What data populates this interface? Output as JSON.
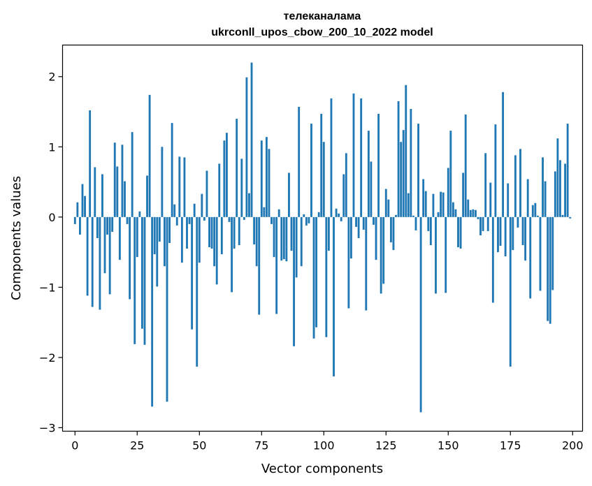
{
  "chart_data": {
    "type": "bar",
    "title": "телеканалама",
    "subtitle": "ukrconll_upos_cbow_200_10_2022 model",
    "xlabel": "Vector components",
    "ylabel": "Components values",
    "xlim": [
      -5,
      204
    ],
    "ylim": [
      -3.05,
      2.45
    ],
    "xticks": [
      0,
      25,
      50,
      75,
      100,
      125,
      150,
      175,
      200
    ],
    "yticks": [
      -3,
      -2,
      -1,
      0,
      1,
      2
    ],
    "ytick_labels": [
      "−3",
      "−2",
      "−1",
      "0",
      "1",
      "2"
    ],
    "bar_color": "#1f77b4",
    "grid": false,
    "x": [
      0,
      1,
      2,
      3,
      4,
      5,
      6,
      7,
      8,
      9,
      10,
      11,
      12,
      13,
      14,
      15,
      16,
      17,
      18,
      19,
      20,
      21,
      22,
      23,
      24,
      25,
      26,
      27,
      28,
      29,
      30,
      31,
      32,
      33,
      34,
      35,
      36,
      37,
      38,
      39,
      40,
      41,
      42,
      43,
      44,
      45,
      46,
      47,
      48,
      49,
      50,
      51,
      52,
      53,
      54,
      55,
      56,
      57,
      58,
      59,
      60,
      61,
      62,
      63,
      64,
      65,
      66,
      67,
      68,
      69,
      70,
      71,
      72,
      73,
      74,
      75,
      76,
      77,
      78,
      79,
      80,
      81,
      82,
      83,
      84,
      85,
      86,
      87,
      88,
      89,
      90,
      91,
      92,
      93,
      94,
      95,
      96,
      97,
      98,
      99,
      100,
      101,
      102,
      103,
      104,
      105,
      106,
      107,
      108,
      109,
      110,
      111,
      112,
      113,
      114,
      115,
      116,
      117,
      118,
      119,
      120,
      121,
      122,
      123,
      124,
      125,
      126,
      127,
      128,
      129,
      130,
      131,
      132,
      133,
      134,
      135,
      136,
      137,
      138,
      139,
      140,
      141,
      142,
      143,
      144,
      145,
      146,
      147,
      148,
      149,
      150,
      151,
      152,
      153,
      154,
      155,
      156,
      157,
      158,
      159,
      160,
      161,
      162,
      163,
      164,
      165,
      166,
      167,
      168,
      169,
      170,
      171,
      172,
      173,
      174,
      175,
      176,
      177,
      178,
      179,
      180,
      181,
      182,
      183,
      184,
      185,
      186,
      187,
      188,
      189,
      190,
      191,
      192,
      193,
      194,
      195,
      196,
      197,
      198,
      199
    ],
    "values": [
      -0.1,
      0.21,
      -0.25,
      0.47,
      0.3,
      -1.12,
      1.52,
      -1.28,
      0.71,
      -0.3,
      -1.32,
      0.61,
      -0.8,
      -0.25,
      -1.1,
      -0.21,
      1.06,
      0.72,
      -0.61,
      1.03,
      0.51,
      -0.1,
      -1.17,
      1.21,
      -1.81,
      -0.57,
      0.08,
      -1.59,
      -1.82,
      0.59,
      1.74,
      -2.7,
      -0.53,
      -0.99,
      -0.35,
      1.0,
      -0.7,
      -2.63,
      -0.37,
      1.34,
      0.18,
      -0.12,
      0.86,
      -0.65,
      0.85,
      -0.45,
      -0.1,
      -1.6,
      0.19,
      -2.13,
      -0.65,
      0.33,
      -0.05,
      0.66,
      -0.43,
      -0.45,
      -0.7,
      -0.96,
      0.76,
      -0.53,
      1.09,
      1.2,
      -0.07,
      -1.07,
      -0.45,
      1.4,
      -0.4,
      0.83,
      -0.04,
      1.99,
      0.34,
      2.2,
      -0.39,
      -0.7,
      -1.39,
      1.09,
      0.14,
      1.14,
      0.97,
      -0.1,
      -0.57,
      -1.38,
      0.11,
      -0.62,
      -0.6,
      -0.63,
      0.63,
      -0.48,
      -1.84,
      -0.86,
      1.57,
      -0.7,
      0.04,
      -0.12,
      -0.09,
      1.33,
      -1.73,
      -1.57,
      0.07,
      1.47,
      1.07,
      -1.71,
      -0.48,
      1.69,
      -2.27,
      0.12,
      0.05,
      -0.06,
      0.61,
      0.91,
      -1.3,
      -0.59,
      1.76,
      -0.14,
      -0.3,
      1.69,
      -0.18,
      -1.33,
      1.23,
      0.79,
      -0.11,
      -0.61,
      1.47,
      -1.09,
      -0.95,
      0.4,
      0.25,
      -0.36,
      -0.47,
      0.03,
      1.65,
      1.07,
      1.24,
      1.88,
      0.34,
      1.54,
      0.02,
      -0.19,
      1.33,
      -2.78,
      0.54,
      0.37,
      -0.2,
      -0.4,
      0.33,
      -1.09,
      0.07,
      0.36,
      0.35,
      -1.08,
      0.7,
      1.23,
      0.21,
      0.11,
      -0.43,
      -0.45,
      0.63,
      1.46,
      0.25,
      0.1,
      0.11,
      0.1,
      -0.03,
      -0.26,
      -0.2,
      0.91,
      -0.2,
      0.49,
      -1.22,
      1.32,
      -0.5,
      -0.41,
      1.78,
      -0.56,
      0.48,
      -2.13,
      -0.47,
      0.88,
      -0.15,
      0.97,
      -0.4,
      -0.62,
      0.54,
      -1.16,
      0.17,
      0.2,
      0.02,
      -1.05,
      0.85,
      0.51,
      -1.48,
      -1.52,
      -1.04,
      0.65,
      1.12,
      0.81,
      0.03,
      0.76,
      1.33,
      -0.02
    ]
  }
}
